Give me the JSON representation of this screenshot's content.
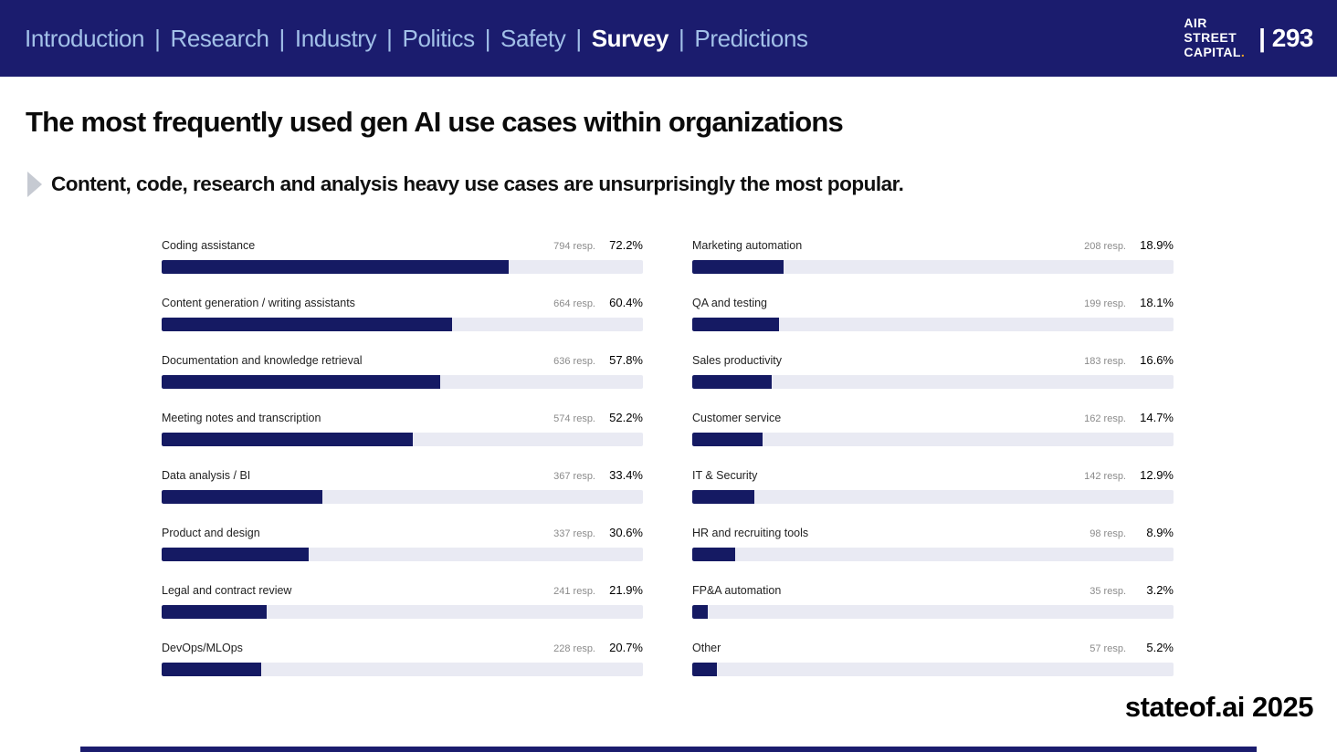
{
  "nav": {
    "separator": "|",
    "items": [
      {
        "label": "Introduction",
        "active": false
      },
      {
        "label": "Research",
        "active": false
      },
      {
        "label": "Industry",
        "active": false
      },
      {
        "label": "Politics",
        "active": false
      },
      {
        "label": "Safety",
        "active": false
      },
      {
        "label": "Survey",
        "active": true
      },
      {
        "label": "Predictions",
        "active": false
      }
    ],
    "logo_lines": [
      "AIR",
      "STREET",
      "CAPITAL"
    ],
    "logo_dot": ".",
    "page_number": "| 293"
  },
  "header": {
    "title": "The most frequently used gen AI use cases within organizations",
    "subtitle": "Content, code, research and analysis heavy use cases are unsurprisingly the most popular."
  },
  "footer": {
    "brand": "stateof.ai 2025"
  },
  "colors": {
    "navy": "#1b1c6e",
    "bar_fill": "#151a63",
    "bar_track": "#e9eaf3",
    "nav_inactive": "#a2c0e8",
    "logo_dot": "#f5a623"
  },
  "chart_data": {
    "type": "bar",
    "orientation": "horizontal",
    "title": "The most frequently used gen AI use cases within organizations",
    "unit": "percent of respondents",
    "xlim": [
      0,
      100
    ],
    "grid": false,
    "legend": false,
    "columns": [
      {
        "rows": [
          {
            "label": "Coding assistance",
            "resp": "794 resp.",
            "pct": "72.2%",
            "value": 72.2
          },
          {
            "label": "Content generation / writing assistants",
            "resp": "664 resp.",
            "pct": "60.4%",
            "value": 60.4
          },
          {
            "label": "Documentation and knowledge retrieval",
            "resp": "636 resp.",
            "pct": "57.8%",
            "value": 57.8
          },
          {
            "label": "Meeting notes and transcription",
            "resp": "574 resp.",
            "pct": "52.2%",
            "value": 52.2
          },
          {
            "label": "Data analysis / BI",
            "resp": "367 resp.",
            "pct": "33.4%",
            "value": 33.4
          },
          {
            "label": "Product and design",
            "resp": "337 resp.",
            "pct": "30.6%",
            "value": 30.6
          },
          {
            "label": "Legal and contract review",
            "resp": "241 resp.",
            "pct": "21.9%",
            "value": 21.9
          },
          {
            "label": "DevOps/MLOps",
            "resp": "228 resp.",
            "pct": "20.7%",
            "value": 20.7
          }
        ]
      },
      {
        "rows": [
          {
            "label": "Marketing automation",
            "resp": "208 resp.",
            "pct": "18.9%",
            "value": 18.9
          },
          {
            "label": "QA and testing",
            "resp": "199 resp.",
            "pct": "18.1%",
            "value": 18.1
          },
          {
            "label": "Sales productivity",
            "resp": "183 resp.",
            "pct": "16.6%",
            "value": 16.6
          },
          {
            "label": "Customer service",
            "resp": "162 resp.",
            "pct": "14.7%",
            "value": 14.7
          },
          {
            "label": "IT & Security",
            "resp": "142 resp.",
            "pct": "12.9%",
            "value": 12.9
          },
          {
            "label": "HR and recruiting tools",
            "resp": "98 resp.",
            "pct": "8.9%",
            "value": 8.9
          },
          {
            "label": "FP&A automation",
            "resp": "35 resp.",
            "pct": "3.2%",
            "value": 3.2
          },
          {
            "label": "Other",
            "resp": "57 resp.",
            "pct": "5.2%",
            "value": 5.2
          }
        ]
      }
    ]
  }
}
